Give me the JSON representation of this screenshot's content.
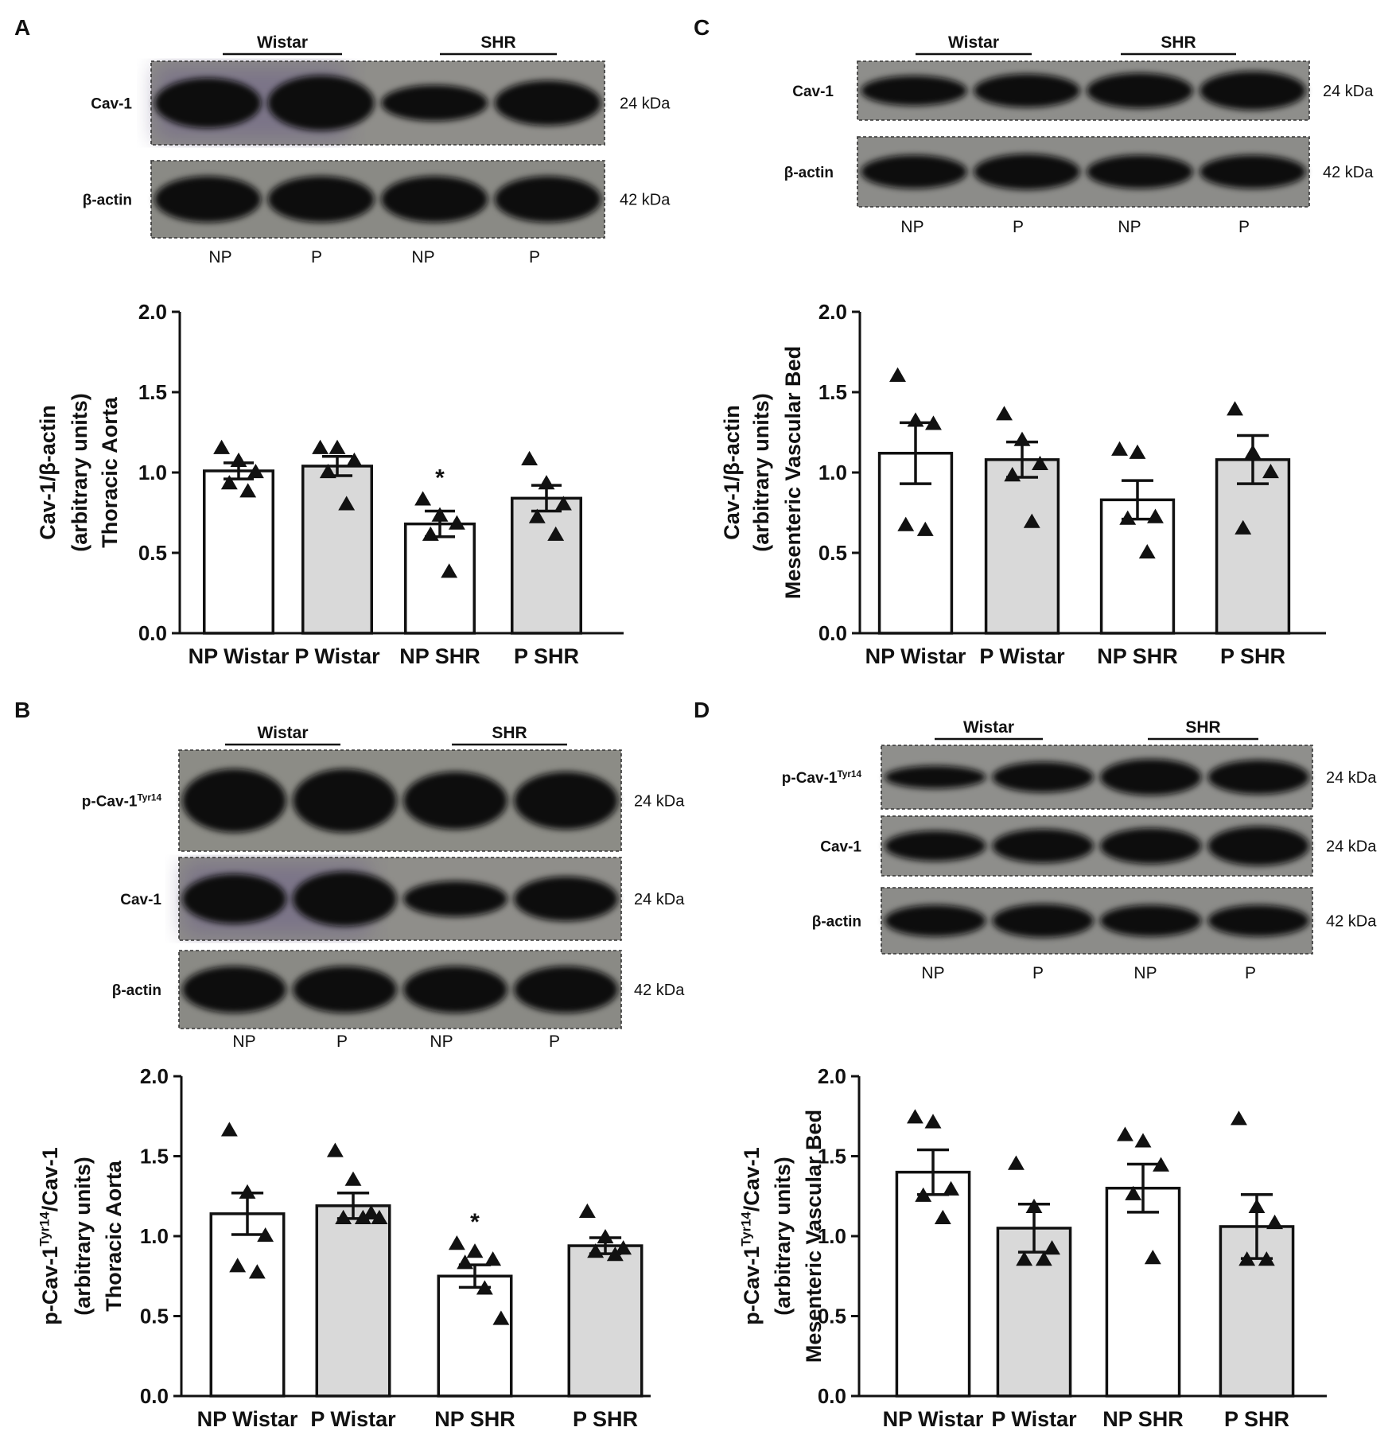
{
  "panels": [
    {
      "letter": "A",
      "group_labels": [
        "Wistar",
        "SHR"
      ],
      "blots": [
        {
          "name": "Cav-1",
          "sup": "",
          "kda": "24 kDa",
          "bg": "#8f8e8a",
          "tint": "#6b5f86",
          "band": [
            1.0,
            1.1,
            0.72,
            0.9
          ]
        },
        {
          "name": "β-actin",
          "sup": "",
          "kda": "42 kDa",
          "bg": "#8a8a85",
          "tint": "",
          "band": [
            1.0,
            1.0,
            1.0,
            1.0
          ]
        }
      ],
      "lane_labels": [
        "NP",
        "P",
        "NP",
        "P"
      ]
    },
    {
      "letter": "B",
      "group_labels": [
        "Wistar",
        "SHR"
      ],
      "blots": [
        {
          "name": "p-Cav-1",
          "sup": "Tyr14",
          "kda": "24 kDa",
          "bg": "#8c8c86",
          "tint": "",
          "band": [
            1.05,
            1.05,
            0.95,
            0.95
          ]
        },
        {
          "name": "Cav-1",
          "sup": "",
          "kda": "24 kDa",
          "bg": "#8f8e8a",
          "tint": "#6b5f86",
          "band": [
            1.0,
            1.1,
            0.72,
            0.9
          ]
        },
        {
          "name": "β-actin",
          "sup": "",
          "kda": "42 kDa",
          "bg": "#8a8a85",
          "tint": "",
          "band": [
            1.0,
            1.0,
            1.0,
            1.0
          ]
        }
      ],
      "lane_labels": [
        "NP",
        "P",
        "NP",
        "P"
      ]
    },
    {
      "letter": "C",
      "group_labels": [
        "Wistar",
        "SHR"
      ],
      "blots": [
        {
          "name": "Cav-1",
          "sup": "",
          "kda": "24 kDa",
          "bg": "#8e8e8b",
          "tint": "",
          "band": [
            0.85,
            0.95,
            1.0,
            1.1
          ]
        },
        {
          "name": "β-actin",
          "sup": "",
          "kda": "42 kDa",
          "bg": "#8c8c89",
          "tint": "",
          "band": [
            0.8,
            0.85,
            0.8,
            0.8
          ]
        }
      ],
      "lane_labels": [
        "NP",
        "P",
        "NP",
        "P"
      ]
    },
    {
      "letter": "D",
      "group_labels": [
        "Wistar",
        "SHR"
      ],
      "blots": [
        {
          "name": "p-Cav-1",
          "sup": "Tyr14",
          "kda": "24 kDa",
          "bg": "#8f8f8c",
          "tint": "",
          "band": [
            0.6,
            0.8,
            0.95,
            0.9
          ]
        },
        {
          "name": "Cav-1",
          "sup": "",
          "kda": "24 kDa",
          "bg": "#8e8e8b",
          "tint": "",
          "band": [
            0.85,
            0.95,
            1.0,
            1.1
          ]
        },
        {
          "name": "β-actin",
          "sup": "",
          "kda": "42 kDa",
          "bg": "#8c8c89",
          "tint": "",
          "band": [
            0.8,
            0.85,
            0.8,
            0.8
          ]
        }
      ],
      "lane_labels": [
        "NP",
        "P",
        "NP",
        "P"
      ]
    }
  ],
  "chart_data": [
    {
      "panel": "A",
      "type": "bar",
      "ylabel_lines": [
        {
          "text": "Cav-1/β-actin",
          "sup": ""
        },
        {
          "text": "(arbitrary units)",
          "sup": ""
        },
        {
          "text": "Thoracic Aorta",
          "sup": ""
        }
      ],
      "ylim": [
        0,
        2
      ],
      "yticks": [
        "0.0",
        "0.5",
        "1.0",
        "1.5",
        "2.0"
      ],
      "categories": [
        "NP Wistar",
        "P Wistar",
        "NP SHR",
        "P SHR"
      ],
      "fills": [
        "#ffffff",
        "#d9d9d9",
        "#ffffff",
        "#d9d9d9"
      ],
      "means": [
        1.01,
        1.04,
        0.68,
        0.84
      ],
      "sem": [
        0.05,
        0.06,
        0.08,
        0.08
      ],
      "points": [
        [
          1.15,
          1.07,
          1.0,
          0.93,
          0.88
        ],
        [
          1.15,
          1.15,
          1.07,
          1.0,
          0.8
        ],
        [
          0.83,
          0.73,
          0.68,
          0.61,
          0.38
        ],
        [
          1.08,
          0.93,
          0.8,
          0.72,
          0.61
        ]
      ],
      "annotations": [
        "",
        "",
        "*",
        ""
      ]
    },
    {
      "panel": "C",
      "type": "bar",
      "ylabel_lines": [
        {
          "text": "Cav-1/β-actin",
          "sup": ""
        },
        {
          "text": "(arbitrary units)",
          "sup": ""
        },
        {
          "text": "Mesenteric Vascular Bed",
          "sup": ""
        }
      ],
      "ylim": [
        0,
        2
      ],
      "yticks": [
        "0.0",
        "0.5",
        "1.0",
        "1.5",
        "2.0"
      ],
      "categories": [
        "NP Wistar",
        "P Wistar",
        "NP SHR",
        "P SHR"
      ],
      "fills": [
        "#ffffff",
        "#d9d9d9",
        "#ffffff",
        "#d9d9d9"
      ],
      "means": [
        1.12,
        1.08,
        0.83,
        1.08
      ],
      "sem": [
        0.19,
        0.11,
        0.12,
        0.15
      ],
      "points": [
        [
          1.6,
          1.32,
          1.3,
          0.67,
          0.64
        ],
        [
          1.36,
          1.2,
          1.05,
          0.98,
          0.69
        ],
        [
          1.14,
          1.12,
          0.72,
          0.71,
          0.5
        ],
        [
          1.39,
          1.12,
          1.0,
          0.65
        ]
      ],
      "annotations": [
        "",
        "",
        "",
        ""
      ]
    },
    {
      "panel": "B",
      "type": "bar",
      "ylabel_lines": [
        {
          "text": "p-Cav-1",
          "sup": "Tyr14",
          "after": "/Cav-1"
        },
        {
          "text": "(arbitrary units)",
          "sup": ""
        },
        {
          "text": "Thoracic Aorta",
          "sup": ""
        }
      ],
      "ylim": [
        0,
        2
      ],
      "yticks": [
        "0.0",
        "0.5",
        "1.0",
        "1.5",
        "2.0"
      ],
      "categories": [
        "NP Wistar",
        "P Wistar",
        "NP SHR",
        "P SHR"
      ],
      "fills": [
        "#ffffff",
        "#d9d9d9",
        "#ffffff",
        "#d9d9d9"
      ],
      "means": [
        1.14,
        1.19,
        0.75,
        0.94
      ],
      "sem": [
        0.13,
        0.08,
        0.07,
        0.05
      ],
      "points": [
        [
          1.66,
          1.27,
          1.0,
          0.81,
          0.77
        ],
        [
          1.53,
          1.35,
          1.14,
          1.11,
          1.11,
          1.11
        ],
        [
          0.95,
          0.9,
          0.85,
          0.83,
          0.67,
          0.48
        ],
        [
          1.15,
          0.99,
          0.92,
          0.9,
          0.88
        ]
      ],
      "annotations": [
        "",
        "",
        "*",
        ""
      ]
    },
    {
      "panel": "D",
      "type": "bar",
      "ylabel_lines": [
        {
          "text": "p-Cav-1",
          "sup": "Tyr14",
          "after": "/Cav-1"
        },
        {
          "text": "(arbitrary units)",
          "sup": ""
        },
        {
          "text": "Mesenteric Vascular Bed",
          "sup": ""
        }
      ],
      "ylim": [
        0,
        2
      ],
      "yticks": [
        "0.0",
        "0.5",
        "1.0",
        "1.5",
        "2.0"
      ],
      "categories": [
        "NP Wistar",
        "P Wistar",
        "NP SHR",
        "P SHR"
      ],
      "fills": [
        "#ffffff",
        "#d9d9d9",
        "#ffffff",
        "#d9d9d9"
      ],
      "means": [
        1.4,
        1.05,
        1.3,
        1.06
      ],
      "sem": [
        0.14,
        0.15,
        0.15,
        0.2
      ],
      "points": [
        [
          1.74,
          1.71,
          1.29,
          1.25,
          1.11
        ],
        [
          1.45,
          1.18,
          0.92,
          0.85,
          0.85
        ],
        [
          1.63,
          1.59,
          1.44,
          1.26,
          0.86
        ],
        [
          1.73,
          1.18,
          1.08,
          0.85,
          0.85
        ]
      ],
      "annotations": [
        "",
        "",
        "",
        ""
      ]
    }
  ]
}
